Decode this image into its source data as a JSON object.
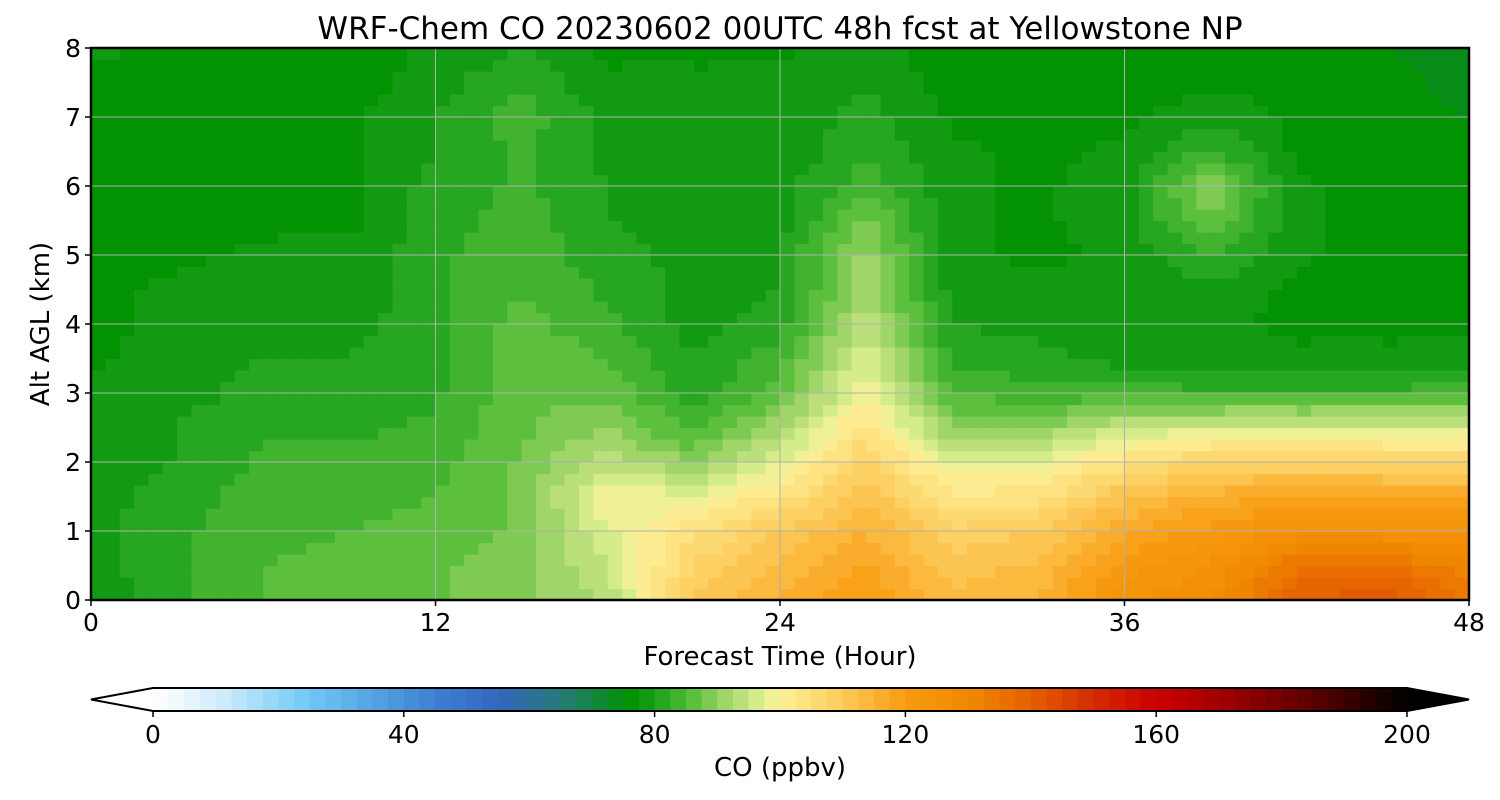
{
  "chart_data": {
    "type": "heatmap",
    "title": "WRF-Chem CO  20230602 00UTC 48h fcst at Yellowstone NP",
    "xlabel": "Forecast Time (Hour)",
    "ylabel": "Alt AGL (km)",
    "xlim": [
      0,
      48
    ],
    "ylim": [
      0,
      8
    ],
    "xticks": [
      0,
      12,
      24,
      36,
      48
    ],
    "yticks": [
      0,
      1,
      2,
      3,
      4,
      5,
      6,
      7,
      8
    ],
    "grid": true,
    "x_hours": [
      0,
      3,
      6,
      9,
      12,
      15,
      18,
      21,
      24,
      27,
      30,
      33,
      36,
      39,
      42,
      45,
      48
    ],
    "y_km": [
      0,
      0.5,
      1,
      1.5,
      2,
      2.5,
      3,
      3.5,
      4,
      4.5,
      5,
      5.5,
      6,
      6.5,
      7,
      7.5,
      8
    ],
    "values_ppbv": [
      [
        78,
        82,
        85,
        86,
        87,
        89,
        93,
        110,
        115,
        120,
        113,
        115,
        124,
        128,
        140,
        142,
        135
      ],
      [
        79,
        82,
        85,
        86,
        87,
        89,
        95,
        108,
        113,
        118,
        111,
        113,
        121,
        125,
        135,
        136,
        131
      ],
      [
        79,
        82,
        84,
        85,
        86,
        88,
        97,
        104,
        110,
        115,
        108,
        110,
        117,
        121,
        126,
        126,
        124
      ],
      [
        79,
        81,
        84,
        84,
        85,
        88,
        100,
        98,
        104,
        112,
        103,
        104,
        112,
        116,
        118,
        117,
        117
      ],
      [
        79,
        80,
        83,
        83,
        84,
        88,
        94,
        90,
        97,
        108,
        97,
        98,
        104,
        108,
        108,
        108,
        107
      ],
      [
        78,
        80,
        82,
        82,
        83,
        87,
        90,
        84,
        92,
        104,
        90,
        90,
        95,
        97,
        97,
        97,
        96
      ],
      [
        78,
        79,
        81,
        81,
        82,
        87,
        87,
        81,
        86,
        100,
        85,
        83,
        84,
        83,
        83,
        83,
        84
      ],
      [
        77,
        79,
        80,
        80,
        82,
        87,
        85,
        80,
        84,
        97,
        82,
        81,
        79,
        78,
        78,
        78,
        78
      ],
      [
        77,
        78,
        79,
        79,
        82,
        86,
        83,
        79,
        81,
        94,
        80,
        79,
        78,
        78,
        77,
        77,
        77
      ],
      [
        77,
        78,
        78,
        78,
        82,
        85,
        82,
        79,
        80,
        92,
        79,
        78,
        78,
        79,
        77,
        76,
        76
      ],
      [
        77,
        77,
        78,
        78,
        82,
        84,
        81,
        79,
        80,
        91,
        78,
        77,
        78,
        83,
        78,
        76,
        76
      ],
      [
        77,
        77,
        77,
        77,
        81,
        84,
        80,
        79,
        79,
        88,
        78,
        77,
        79,
        87,
        78,
        76,
        76
      ],
      [
        77,
        77,
        77,
        77,
        81,
        83,
        80,
        79,
        79,
        84,
        78,
        77,
        79,
        90,
        78,
        76,
        76
      ],
      [
        77,
        77,
        76,
        77,
        80,
        83,
        79,
        79,
        78,
        82,
        78,
        77,
        78,
        83,
        77,
        76,
        75
      ],
      [
        77,
        77,
        76,
        77,
        80,
        84,
        79,
        78,
        78,
        81,
        77,
        76,
        77,
        79,
        77,
        76,
        75
      ],
      [
        77,
        77,
        76,
        76,
        79,
        82,
        78,
        78,
        78,
        80,
        76,
        76,
        76,
        77,
        77,
        76,
        74
      ],
      [
        78,
        77,
        76,
        76,
        78,
        80,
        77,
        77,
        77,
        79,
        76,
        76,
        76,
        76,
        77,
        75,
        74
      ]
    ],
    "colorbar": {
      "label": "CO  (ppbv)",
      "min": 0,
      "max": 200,
      "step": 2.5,
      "ticks": [
        0,
        40,
        80,
        120,
        160,
        200
      ],
      "extend": "both",
      "orientation": "horizontal",
      "color_stops": [
        {
          "v": 0,
          "c": "#ffffff"
        },
        {
          "v": 10,
          "c": "#d4eefc"
        },
        {
          "v": 25,
          "c": "#6fc8f5"
        },
        {
          "v": 45,
          "c": "#3d7fd0"
        },
        {
          "v": 55,
          "c": "#3467bf"
        },
        {
          "v": 65,
          "c": "#267a7a"
        },
        {
          "v": 76,
          "c": "#009100"
        },
        {
          "v": 80,
          "c": "#1aa01a"
        },
        {
          "v": 86,
          "c": "#5abf3a"
        },
        {
          "v": 92,
          "c": "#a9d870"
        },
        {
          "v": 97,
          "c": "#ddef90"
        },
        {
          "v": 100,
          "c": "#fef19a"
        },
        {
          "v": 110,
          "c": "#fccb5a"
        },
        {
          "v": 120,
          "c": "#f89b10"
        },
        {
          "v": 130,
          "c": "#f08a00"
        },
        {
          "v": 140,
          "c": "#e56000"
        },
        {
          "v": 150,
          "c": "#d42a00"
        },
        {
          "v": 160,
          "c": "#cc0000"
        },
        {
          "v": 170,
          "c": "#a20000"
        },
        {
          "v": 185,
          "c": "#5a0000"
        },
        {
          "v": 200,
          "c": "#000000"
        }
      ]
    }
  }
}
